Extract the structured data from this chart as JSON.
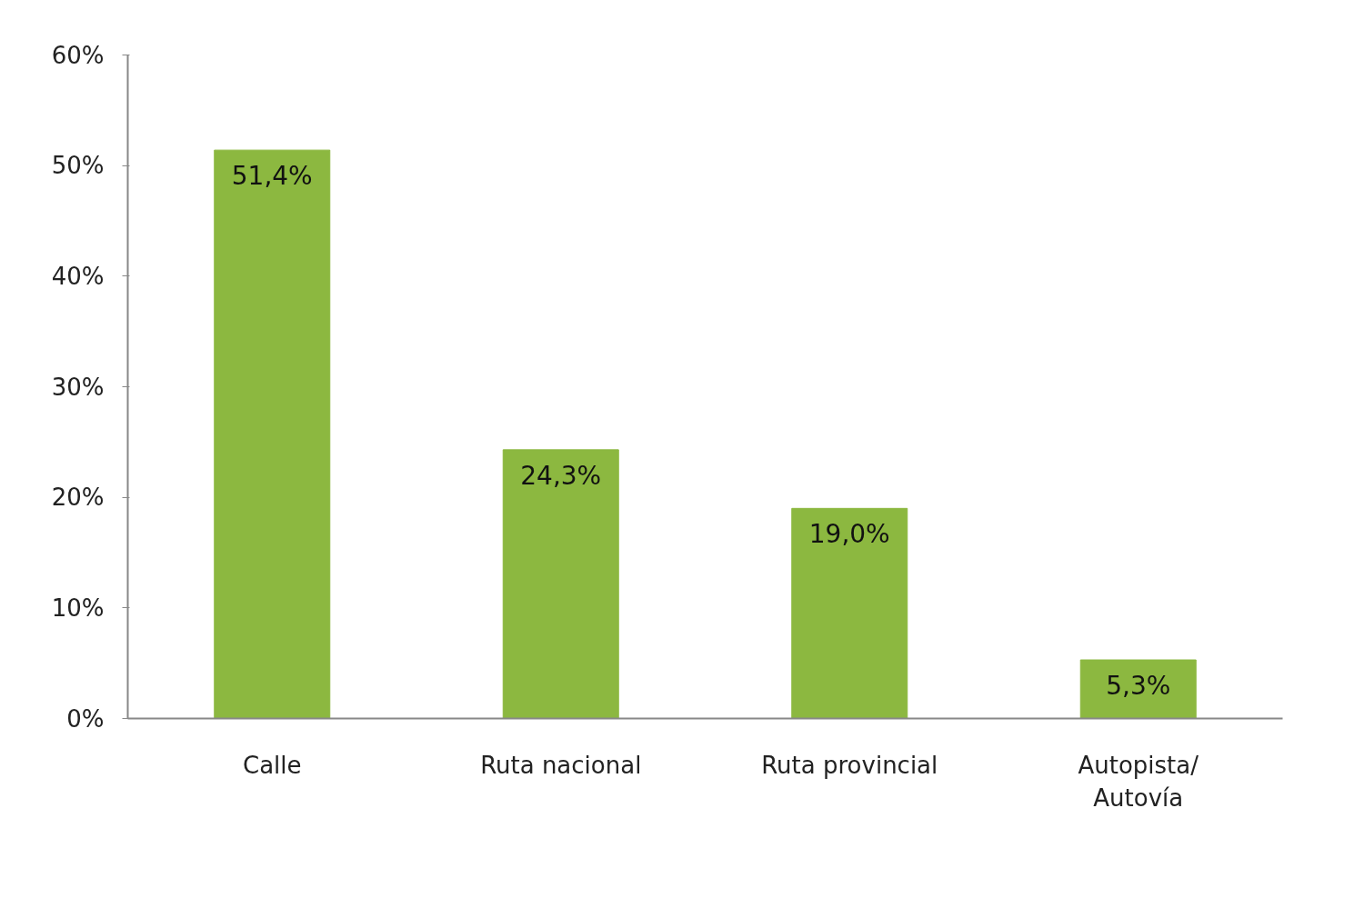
{
  "chart_data": {
    "type": "bar",
    "categories": [
      "Calle",
      "Ruta nacional",
      "Ruta provincial",
      "Autopista/\nAutovía"
    ],
    "values": [
      51.4,
      24.3,
      19.0,
      5.3
    ],
    "value_labels": [
      "51,4%",
      "24,3%",
      "19,0%",
      "5,3%"
    ],
    "color": "#8cb840",
    "ylim": [
      0,
      60
    ],
    "yticks": [
      {
        "value": 0,
        "label": "0%"
      },
      {
        "value": 10,
        "label": "10%"
      },
      {
        "value": 20,
        "label": "20%"
      },
      {
        "value": 30,
        "label": "30%"
      },
      {
        "value": 40,
        "label": "40%"
      },
      {
        "value": 50,
        "label": "50%"
      },
      {
        "value": 60,
        "label": "60%"
      }
    ],
    "grid": false
  }
}
